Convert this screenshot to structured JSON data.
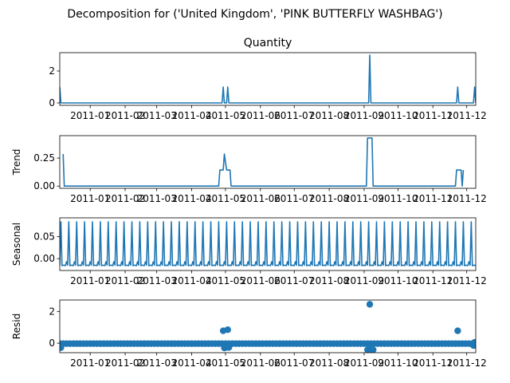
{
  "figure": {
    "suptitle": "Decomposition for ('United Kingdom', 'PINK BUTTERFLY WASHBAG')"
  },
  "style": {
    "series_color": "#1f77b4",
    "axis_color": "#000000",
    "background": "#ffffff"
  },
  "chart_data": [
    {
      "id": "observed",
      "type": "line",
      "title": "Quantity",
      "ylabel": "",
      "xlim": [
        "2010-12-05",
        "2011-12-09"
      ],
      "ylim": [
        -0.15,
        3.15
      ],
      "yticks": [
        {
          "value": 0,
          "label": "0"
        },
        {
          "value": 2,
          "label": "2"
        }
      ],
      "xticks": [
        "2011-01",
        "2011-02",
        "2011-03",
        "2011-04",
        "2011-05",
        "2011-06",
        "2011-07",
        "2011-08",
        "2011-09",
        "2011-10",
        "2011-11",
        "2011-12"
      ],
      "series": [
        {
          "x": [
            "2010-12-05",
            "2010-12-06",
            "2011-04-28",
            "2011-04-29",
            "2011-04-30",
            "2011-05-02",
            "2011-05-03",
            "2011-05-04",
            "2011-09-05",
            "2011-09-06",
            "2011-09-07",
            "2011-11-22",
            "2011-11-23",
            "2011-11-24",
            "2011-12-07",
            "2011-12-08",
            "2011-12-09"
          ],
          "values": [
            1,
            0,
            0,
            1,
            0,
            0,
            1,
            0,
            0,
            3,
            0,
            0,
            1,
            0,
            0,
            1,
            0
          ]
        }
      ]
    },
    {
      "id": "trend",
      "type": "line",
      "title": "",
      "ylabel": "Trend",
      "xlim": [
        "2010-12-05",
        "2011-12-09"
      ],
      "ylim": [
        -0.02,
        0.45
      ],
      "yticks": [
        {
          "value": 0,
          "label": "0.00"
        },
        {
          "value": 0.25,
          "label": "0.25"
        }
      ],
      "xticks": [
        "2011-01",
        "2011-02",
        "2011-03",
        "2011-04",
        "2011-05",
        "2011-06",
        "2011-07",
        "2011-08",
        "2011-09",
        "2011-10",
        "2011-11",
        "2011-12"
      ],
      "series": [
        {
          "x": [
            "2010-12-08",
            "2010-12-09",
            "2011-04-25",
            "2011-04-26",
            "2011-04-29",
            "2011-04-30",
            "2011-05-02",
            "2011-05-03",
            "2011-05-05",
            "2011-05-06",
            "2011-09-03",
            "2011-09-04",
            "2011-09-08",
            "2011-09-09",
            "2011-11-21",
            "2011-11-22",
            "2011-11-26",
            "2011-11-27",
            "2011-11-28"
          ],
          "values": [
            0.286,
            0,
            0,
            0.143,
            0.143,
            0.286,
            0.143,
            0.143,
            0.143,
            0,
            0,
            0.429,
            0.429,
            0,
            0,
            0.143,
            0.143,
            0,
            0.143
          ]
        }
      ]
    },
    {
      "id": "seasonal",
      "type": "line",
      "title": "",
      "ylabel": "Seasonal",
      "xlim": [
        "2010-12-05",
        "2011-12-09"
      ],
      "ylim": [
        -0.027,
        0.093
      ],
      "yticks": [
        {
          "value": 0,
          "label": "0.00"
        },
        {
          "value": 0.05,
          "label": "0.05"
        }
      ],
      "xticks": [
        "2011-01",
        "2011-02",
        "2011-03",
        "2011-04",
        "2011-05",
        "2011-06",
        "2011-07",
        "2011-08",
        "2011-09",
        "2011-10",
        "2011-11",
        "2011-12"
      ],
      "pattern": {
        "start": "2010-12-05",
        "end": "2011-12-09",
        "period_days": 7,
        "cycle": [
          -0.015,
          0.084,
          -0.016,
          -0.015,
          -0.015,
          -0.016,
          -0.007
        ]
      }
    },
    {
      "id": "resid",
      "type": "scatter",
      "title": "",
      "ylabel": "Resid",
      "xlim": [
        "2010-12-05",
        "2011-12-09"
      ],
      "ylim": [
        -0.6,
        2.72
      ],
      "yticks": [
        {
          "value": 0,
          "label": "0"
        },
        {
          "value": 2,
          "label": "2"
        }
      ],
      "xticks": [
        "2011-01",
        "2011-02",
        "2011-03",
        "2011-04",
        "2011-05",
        "2011-06",
        "2011-07",
        "2011-08",
        "2011-09",
        "2011-10",
        "2011-11",
        "2011-12"
      ],
      "baseline": {
        "start": "2010-12-05",
        "end": "2011-12-09",
        "step_days": 3,
        "value": -0.03
      },
      "points": [
        {
          "x": "2010-12-06",
          "y": -0.28
        },
        {
          "x": "2011-04-29",
          "y": 0.78
        },
        {
          "x": "2011-04-30",
          "y": -0.3
        },
        {
          "x": "2011-05-01",
          "y": -0.28
        },
        {
          "x": "2011-05-03",
          "y": 0.85
        },
        {
          "x": "2011-05-04",
          "y": -0.27
        },
        {
          "x": "2011-09-04",
          "y": -0.42
        },
        {
          "x": "2011-09-05",
          "y": -0.42
        },
        {
          "x": "2011-09-06",
          "y": 2.45
        },
        {
          "x": "2011-09-07",
          "y": -0.42
        },
        {
          "x": "2011-09-08",
          "y": -0.42
        },
        {
          "x": "2011-09-09",
          "y": -0.42
        },
        {
          "x": "2011-11-23",
          "y": 0.78
        },
        {
          "x": "2011-12-07",
          "y": -0.15
        },
        {
          "x": "2011-12-08",
          "y": 0.05
        },
        {
          "x": "2011-12-09",
          "y": -0.15
        }
      ]
    }
  ]
}
